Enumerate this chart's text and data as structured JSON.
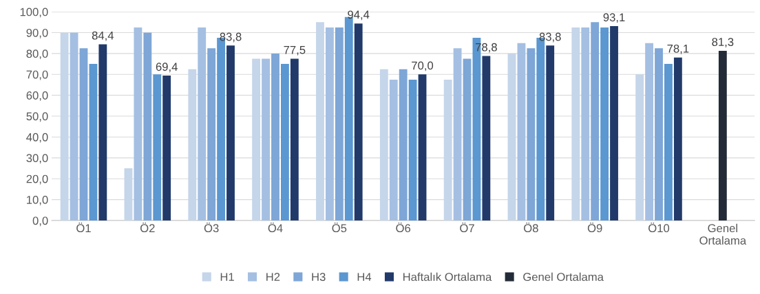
{
  "chart_data": {
    "type": "bar",
    "categories": [
      "Ö1",
      "Ö2",
      "Ö3",
      "Ö4",
      "Ö5",
      "Ö6",
      "Ö7",
      "Ö8",
      "Ö9",
      "Ö10",
      "Genel\nOrtalama"
    ],
    "series": [
      {
        "name": "H1",
        "color": "#c5d5ea",
        "values": [
          90,
          25,
          72.5,
          77.5,
          95,
          72.5,
          67.5,
          80,
          92.5,
          70,
          null
        ]
      },
      {
        "name": "H2",
        "color": "#a4bfe2",
        "values": [
          90,
          92.5,
          92.5,
          77.5,
          92.5,
          67.5,
          82.5,
          85,
          92.5,
          85,
          null
        ]
      },
      {
        "name": "H3",
        "color": "#7ea6d6",
        "values": [
          82.5,
          90,
          82.5,
          80,
          92.5,
          72.5,
          77.5,
          82.5,
          95,
          82.5,
          null
        ]
      },
      {
        "name": "H4",
        "color": "#5b97d0",
        "values": [
          75,
          70,
          87.5,
          75,
          97.5,
          67.5,
          87.5,
          87.5,
          92.5,
          75,
          null
        ]
      },
      {
        "name": "Haftalık Ortalama",
        "color": "#213a6a",
        "values": [
          84.4,
          69.4,
          83.8,
          77.5,
          94.4,
          70.0,
          78.8,
          83.8,
          93.1,
          78.1,
          null
        ],
        "value_labels": [
          "84,4",
          "69,4",
          "83,8",
          "77,5",
          "94,4",
          "70,0",
          "78,8",
          "83,8",
          "93,1",
          "78,1",
          null
        ]
      },
      {
        "name": "Genel Ortalama",
        "color": "#232b38",
        "values": [
          null,
          null,
          null,
          null,
          null,
          null,
          null,
          null,
          null,
          null,
          81.3
        ],
        "value_labels": [
          null,
          null,
          null,
          null,
          null,
          null,
          null,
          null,
          null,
          null,
          "81,3"
        ]
      }
    ],
    "ylim": [
      0,
      100
    ],
    "yticks": [
      {
        "value": 0,
        "label": "0,0"
      },
      {
        "value": 10,
        "label": "10,0"
      },
      {
        "value": 20,
        "label": "20,0"
      },
      {
        "value": 30,
        "label": "30,0"
      },
      {
        "value": 40,
        "label": "40,0"
      },
      {
        "value": 50,
        "label": "50,0"
      },
      {
        "value": 60,
        "label": "60,0"
      },
      {
        "value": 70,
        "label": "70,0"
      },
      {
        "value": 80,
        "label": "80,0"
      },
      {
        "value": 90,
        "label": "90,0"
      },
      {
        "value": 100,
        "label": "100,0"
      }
    ],
    "grid": "y",
    "legend": "bottom"
  }
}
